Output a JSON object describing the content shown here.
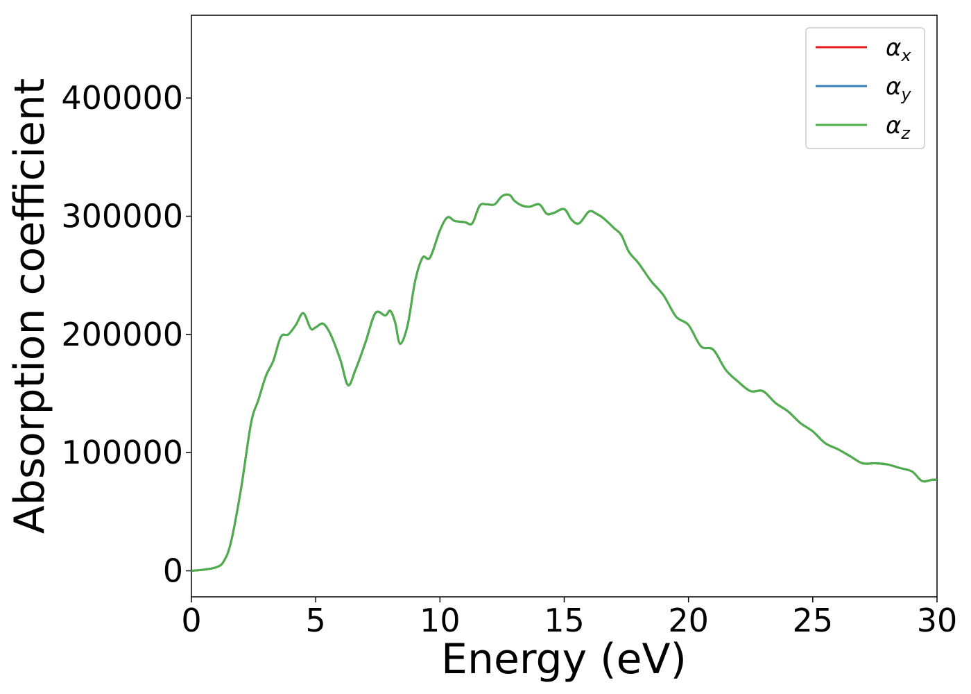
{
  "chart_data": {
    "type": "line",
    "xlabel": "Energy (eV)",
    "ylabel": "Absorption coefficient",
    "xlim": [
      0,
      30
    ],
    "ylim": [
      -22000,
      470000
    ],
    "x_ticks": [
      0,
      5,
      10,
      15,
      20,
      25,
      30
    ],
    "x_tick_labels": [
      "0",
      "5",
      "10",
      "15",
      "20",
      "25",
      "30"
    ],
    "y_ticks": [
      0,
      100000,
      200000,
      300000,
      400000
    ],
    "y_tick_labels": [
      "0",
      "100000",
      "200000",
      "300000",
      "400000"
    ],
    "grid": false,
    "legend_position": "top-right",
    "legend": [
      {
        "symbol": "α",
        "subscript": "x",
        "color": "#e41a1c"
      },
      {
        "symbol": "α",
        "subscript": "y",
        "color": "#377eb8"
      },
      {
        "symbol": "α",
        "subscript": "z",
        "color": "#4daf4a"
      }
    ],
    "series": [
      {
        "color": "#e41a1c",
        "x": [
          0,
          0.5,
          1.0,
          1.3,
          1.6,
          2.0,
          2.4,
          2.7,
          3.0,
          3.3,
          3.6,
          3.9,
          4.2,
          4.5,
          4.8,
          5.0,
          5.3,
          5.6,
          6.0,
          6.3,
          6.6,
          7.0,
          7.4,
          7.8,
          8.0,
          8.2,
          8.4,
          8.7,
          9.0,
          9.3,
          9.6,
          10.0,
          10.3,
          10.6,
          11.0,
          11.3,
          11.6,
          11.9,
          12.2,
          12.5,
          12.8,
          13.0,
          13.3,
          13.6,
          14.0,
          14.3,
          14.6,
          15.0,
          15.3,
          15.6,
          16.0,
          16.3,
          16.6,
          17.0,
          17.3,
          17.6,
          18.0,
          18.5,
          19.0,
          19.5,
          20.0,
          20.5,
          21.0,
          21.5,
          22.0,
          22.5,
          23.0,
          23.5,
          24.0,
          24.5,
          25.0,
          25.5,
          26.0,
          26.5,
          27.0,
          27.5,
          28.0,
          28.5,
          29.0,
          29.4,
          29.8,
          30.0
        ],
        "y": [
          0,
          1000,
          3000,
          8000,
          25000,
          70000,
          125000,
          145000,
          165000,
          178000,
          198000,
          200000,
          208000,
          218000,
          205000,
          206000,
          209000,
          200000,
          178000,
          157000,
          170000,
          193000,
          218000,
          216000,
          220000,
          210000,
          192000,
          208000,
          245000,
          265000,
          265000,
          288000,
          299000,
          296000,
          295000,
          294000,
          309000,
          310000,
          310000,
          317000,
          318000,
          313000,
          309000,
          308000,
          310000,
          302000,
          303000,
          306000,
          297000,
          294000,
          304000,
          302000,
          298000,
          290000,
          284000,
          270000,
          260000,
          245000,
          233000,
          215000,
          208000,
          190000,
          187000,
          170000,
          160000,
          152000,
          152000,
          142000,
          135000,
          125000,
          118000,
          108000,
          103000,
          97000,
          91000,
          91000,
          90000,
          87000,
          84000,
          76000,
          77000,
          77000
        ]
      },
      {
        "color": "#377eb8",
        "x": [
          0,
          0.5,
          1.0,
          1.3,
          1.6,
          2.0,
          2.4,
          2.7,
          3.0,
          3.3,
          3.6,
          3.9,
          4.2,
          4.5,
          4.8,
          5.0,
          5.3,
          5.6,
          6.0,
          6.3,
          6.6,
          7.0,
          7.4,
          7.8,
          8.0,
          8.2,
          8.4,
          8.7,
          9.0,
          9.3,
          9.6,
          10.0,
          10.3,
          10.6,
          11.0,
          11.3,
          11.6,
          11.9,
          12.2,
          12.5,
          12.8,
          13.0,
          13.3,
          13.6,
          14.0,
          14.3,
          14.6,
          15.0,
          15.3,
          15.6,
          16.0,
          16.3,
          16.6,
          17.0,
          17.3,
          17.6,
          18.0,
          18.5,
          19.0,
          19.5,
          20.0,
          20.5,
          21.0,
          21.5,
          22.0,
          22.5,
          23.0,
          23.5,
          24.0,
          24.5,
          25.0,
          25.5,
          26.0,
          26.5,
          27.0,
          27.5,
          28.0,
          28.5,
          29.0,
          29.4,
          29.8,
          30.0
        ],
        "y": [
          0,
          1000,
          3000,
          8000,
          25000,
          70000,
          125000,
          145000,
          165000,
          178000,
          198000,
          200000,
          208000,
          218000,
          205000,
          206000,
          209000,
          200000,
          178000,
          157000,
          170000,
          193000,
          218000,
          216000,
          220000,
          210000,
          192000,
          208000,
          245000,
          265000,
          265000,
          288000,
          299000,
          296000,
          295000,
          294000,
          309000,
          310000,
          310000,
          317000,
          318000,
          313000,
          309000,
          308000,
          310000,
          302000,
          303000,
          306000,
          297000,
          294000,
          304000,
          302000,
          298000,
          290000,
          284000,
          270000,
          260000,
          245000,
          233000,
          215000,
          208000,
          190000,
          187000,
          170000,
          160000,
          152000,
          152000,
          142000,
          135000,
          125000,
          118000,
          108000,
          103000,
          97000,
          91000,
          91000,
          90000,
          87000,
          84000,
          76000,
          77000,
          77000
        ]
      },
      {
        "color": "#4daf4a",
        "x": [
          0,
          0.5,
          1.0,
          1.3,
          1.6,
          2.0,
          2.4,
          2.7,
          3.0,
          3.3,
          3.6,
          3.9,
          4.2,
          4.5,
          4.8,
          5.0,
          5.3,
          5.6,
          6.0,
          6.3,
          6.6,
          7.0,
          7.4,
          7.8,
          8.0,
          8.2,
          8.4,
          8.7,
          9.0,
          9.3,
          9.6,
          10.0,
          10.3,
          10.6,
          11.0,
          11.3,
          11.6,
          11.9,
          12.2,
          12.5,
          12.8,
          13.0,
          13.3,
          13.6,
          14.0,
          14.3,
          14.6,
          15.0,
          15.3,
          15.6,
          16.0,
          16.3,
          16.6,
          17.0,
          17.3,
          17.6,
          18.0,
          18.5,
          19.0,
          19.5,
          20.0,
          20.5,
          21.0,
          21.5,
          22.0,
          22.5,
          23.0,
          23.5,
          24.0,
          24.5,
          25.0,
          25.5,
          26.0,
          26.5,
          27.0,
          27.5,
          28.0,
          28.5,
          29.0,
          29.4,
          29.8,
          30.0
        ],
        "y": [
          0,
          1000,
          3000,
          8000,
          25000,
          70000,
          125000,
          145000,
          165000,
          178000,
          198000,
          200000,
          208000,
          218000,
          205000,
          206000,
          209000,
          200000,
          178000,
          157000,
          170000,
          193000,
          218000,
          216000,
          220000,
          210000,
          192000,
          208000,
          245000,
          265000,
          265000,
          288000,
          299000,
          296000,
          295000,
          294000,
          309000,
          310000,
          310000,
          317000,
          318000,
          313000,
          309000,
          308000,
          310000,
          302000,
          303000,
          306000,
          297000,
          294000,
          304000,
          302000,
          298000,
          290000,
          284000,
          270000,
          260000,
          245000,
          233000,
          215000,
          208000,
          190000,
          187000,
          170000,
          160000,
          152000,
          152000,
          142000,
          135000,
          125000,
          118000,
          108000,
          103000,
          97000,
          91000,
          91000,
          90000,
          87000,
          84000,
          76000,
          77000,
          77000
        ]
      }
    ]
  }
}
